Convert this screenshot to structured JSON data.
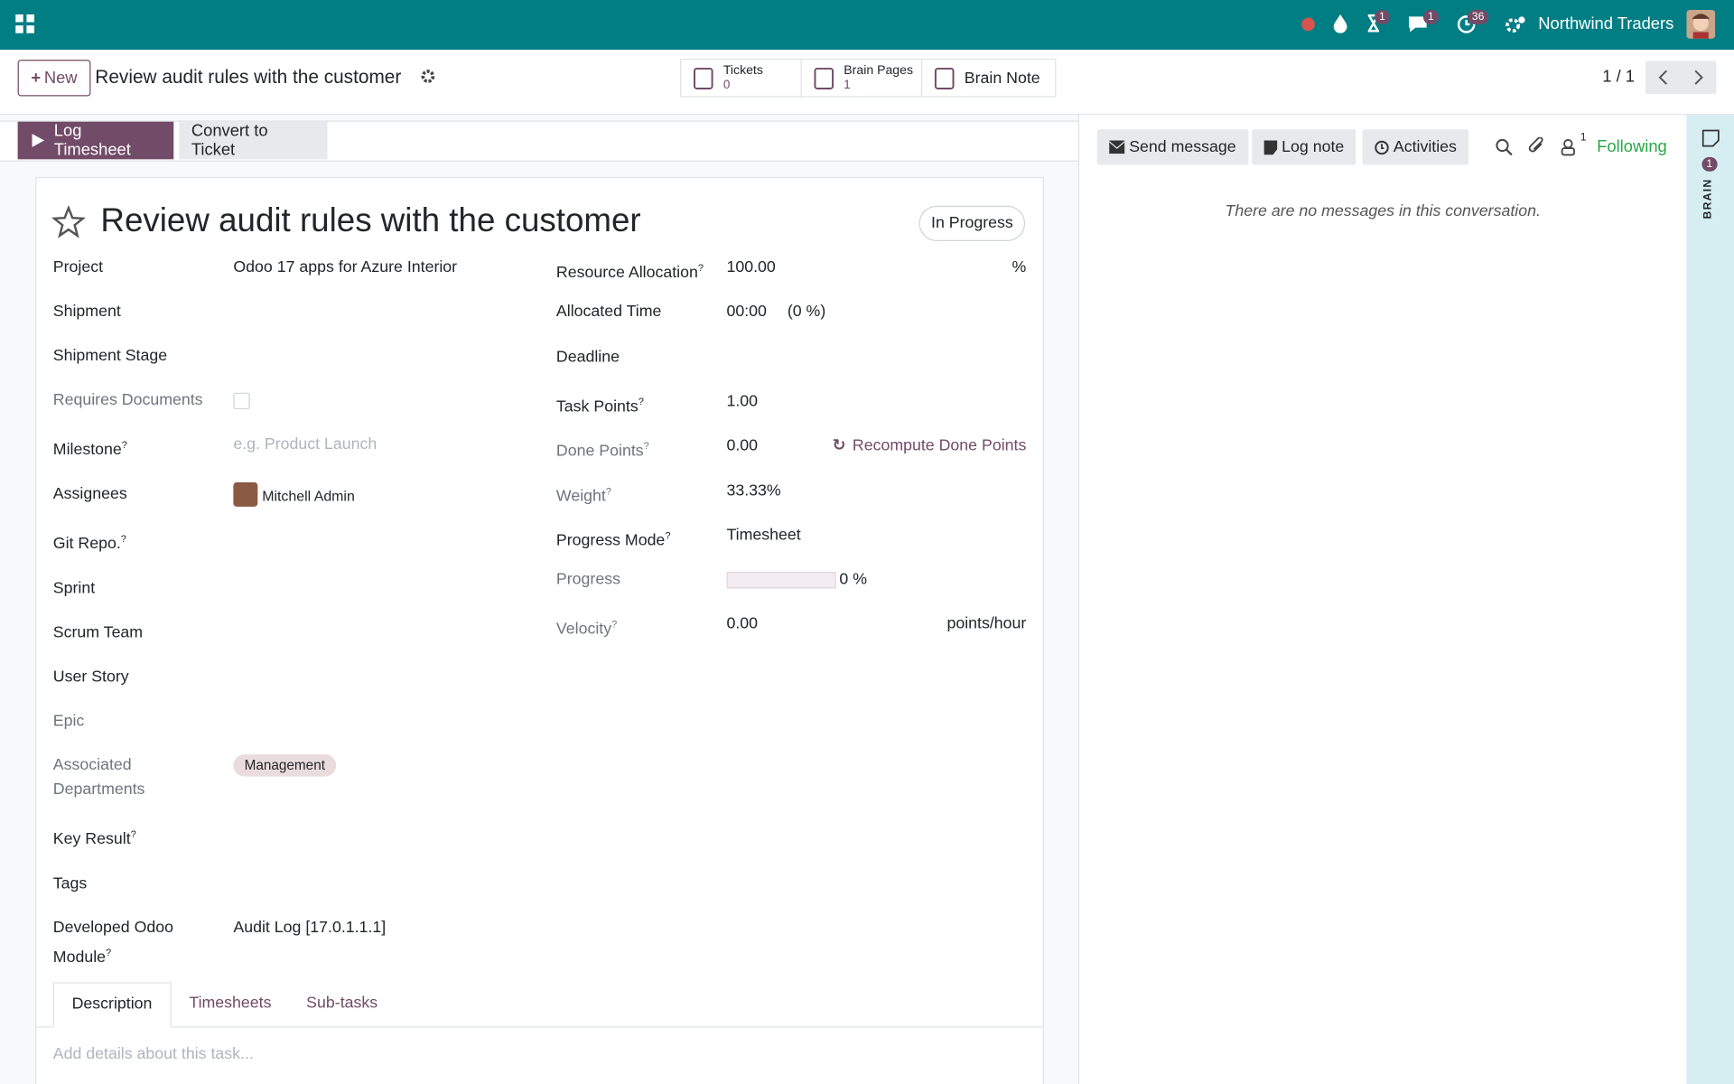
{
  "navbar": {
    "badges": [
      "1",
      "1",
      "36"
    ],
    "company": "Northwind Traders"
  },
  "control_panel": {
    "new_button": "New",
    "breadcrumb": "Review audit rules with the customer",
    "smart_buttons": [
      {
        "label": "Tickets",
        "count": "0"
      },
      {
        "label": "Brain Pages",
        "count": "1"
      },
      {
        "label": "Brain Note"
      }
    ],
    "pager": "1 / 1"
  },
  "status_bar": {
    "buttons": [
      "Log Timesheet",
      "Convert to Ticket"
    ]
  },
  "form": {
    "title": "Review audit rules with the customer",
    "stage": "In Progress",
    "left_fields": [
      {
        "label": "Project",
        "value": "Odoo 17 apps for Azure Interior"
      },
      {
        "label": "Shipment"
      },
      {
        "label": "Shipment Stage"
      },
      {
        "label": "Requires Documents",
        "muted": true,
        "checkbox": false
      },
      {
        "label": "Milestone",
        "help": "?",
        "placeholder": "e.g. Product Launch"
      },
      {
        "label": "Assignees",
        "avatar_user": "Mitchell Admin"
      },
      {
        "label": "Git Repo.",
        "help": "?"
      },
      {
        "label": "Sprint"
      },
      {
        "label": "Scrum Team"
      },
      {
        "label": "User Story"
      },
      {
        "label": "Epic",
        "muted": true
      },
      {
        "label": "Associated Departments",
        "muted": true,
        "tags": [
          "Management"
        ]
      },
      {
        "label": "Key Result",
        "help": "?"
      },
      {
        "label": "Tags"
      },
      {
        "label": "Developed Odoo Module",
        "help": "?",
        "value": "Audit Log [17.0.1.1.1]"
      }
    ],
    "right_fields": [
      {
        "label": "Resource Allocation",
        "help": "?",
        "value": "100.00",
        "unit": "%"
      },
      {
        "label": "Allocated Time",
        "value": "00:00",
        "extra": "(0 %)"
      },
      {
        "label": "Deadline"
      },
      {
        "label": "Task Points",
        "help": "?",
        "value": "1.00"
      },
      {
        "label": "Done Points",
        "help": "?",
        "muted": true,
        "value": "0.00",
        "action": "Recompute Done Points"
      },
      {
        "label": "Weight",
        "help": "?",
        "muted": true,
        "value": "33.33%"
      },
      {
        "label": "Progress Mode",
        "help": "?",
        "value": "Timesheet"
      },
      {
        "label": "Progress",
        "muted": true,
        "progress": {
          "value": 0,
          "label": "0 %"
        }
      },
      {
        "label": "Velocity",
        "help": "?",
        "muted": true,
        "value": "0.00",
        "unit": "points/hour"
      }
    ],
    "tabs": [
      "Description",
      "Timesheets",
      "Sub-tasks"
    ],
    "description_placeholder": "Add details about this task..."
  },
  "chatter": {
    "buttons": [
      "Send message",
      "Log note",
      "Activities"
    ],
    "followers_count": "1",
    "following": "Following",
    "empty": "There are no messages in this conversation."
  },
  "side_panel": {
    "badge": "1",
    "label": "BRAIN"
  }
}
